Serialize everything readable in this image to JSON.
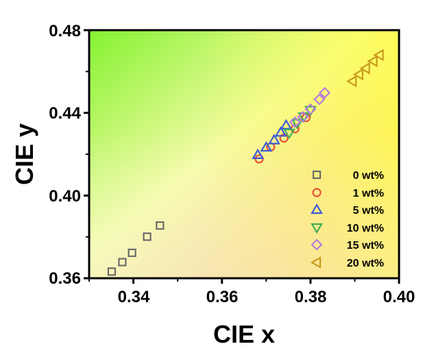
{
  "chart_data": {
    "type": "scatter",
    "xlabel": "CIE x",
    "ylabel": "CIE y",
    "xlim": [
      0.33,
      0.4
    ],
    "ylim": [
      0.36,
      0.48
    ],
    "xticks": [
      0.34,
      0.36,
      0.38,
      0.4
    ],
    "yticks": [
      0.36,
      0.4,
      0.44,
      0.48
    ],
    "xtick_labels": [
      "0.34",
      "0.36",
      "0.38",
      "0.40"
    ],
    "ytick_labels": [
      "0.36",
      "0.40",
      "0.44",
      "0.48"
    ],
    "background": "color gradient (green top-left, yellow top-right, orange bottom-right)",
    "legend_position": "bottom-right",
    "series": [
      {
        "name": "0 wt%",
        "marker": "square",
        "color": "#6b6b6b",
        "x": [
          0.3351,
          0.3375,
          0.3397,
          0.3431,
          0.346
        ],
        "y": [
          0.3632,
          0.3678,
          0.3723,
          0.3801,
          0.3855
        ]
      },
      {
        "name": "1 wt%",
        "marker": "circle",
        "color": "#e8503a",
        "x": [
          0.3684,
          0.371,
          0.374,
          0.3765,
          0.379
        ],
        "y": [
          0.4177,
          0.4235,
          0.4278,
          0.4323,
          0.4377
        ]
      },
      {
        "name": "5 wt%",
        "marker": "triangle-up",
        "color": "#3a5bd9",
        "x": [
          0.3681,
          0.37,
          0.3718,
          0.3733,
          0.3745
        ],
        "y": [
          0.4197,
          0.4233,
          0.4268,
          0.4305,
          0.434
        ]
      },
      {
        "name": "10 wt%",
        "marker": "triangle-down",
        "color": "#3fae55",
        "x": [
          0.3752,
          0.377,
          0.3785,
          0.38
        ],
        "y": [
          0.4303,
          0.435,
          0.4382,
          0.4413
        ]
      },
      {
        "name": "15 wt%",
        "marker": "diamond",
        "color": "#b97ddc",
        "x": [
          0.3765,
          0.3783,
          0.38,
          0.382,
          0.3832
        ],
        "y": [
          0.4355,
          0.4381,
          0.4418,
          0.4465,
          0.4497
        ]
      },
      {
        "name": "20 wt%",
        "marker": "triangle-left",
        "color": "#c89a1e",
        "x": [
          0.3895,
          0.391,
          0.3925,
          0.3942,
          0.3956
        ],
        "y": [
          0.4553,
          0.4586,
          0.4615,
          0.465,
          0.468
        ]
      }
    ]
  }
}
